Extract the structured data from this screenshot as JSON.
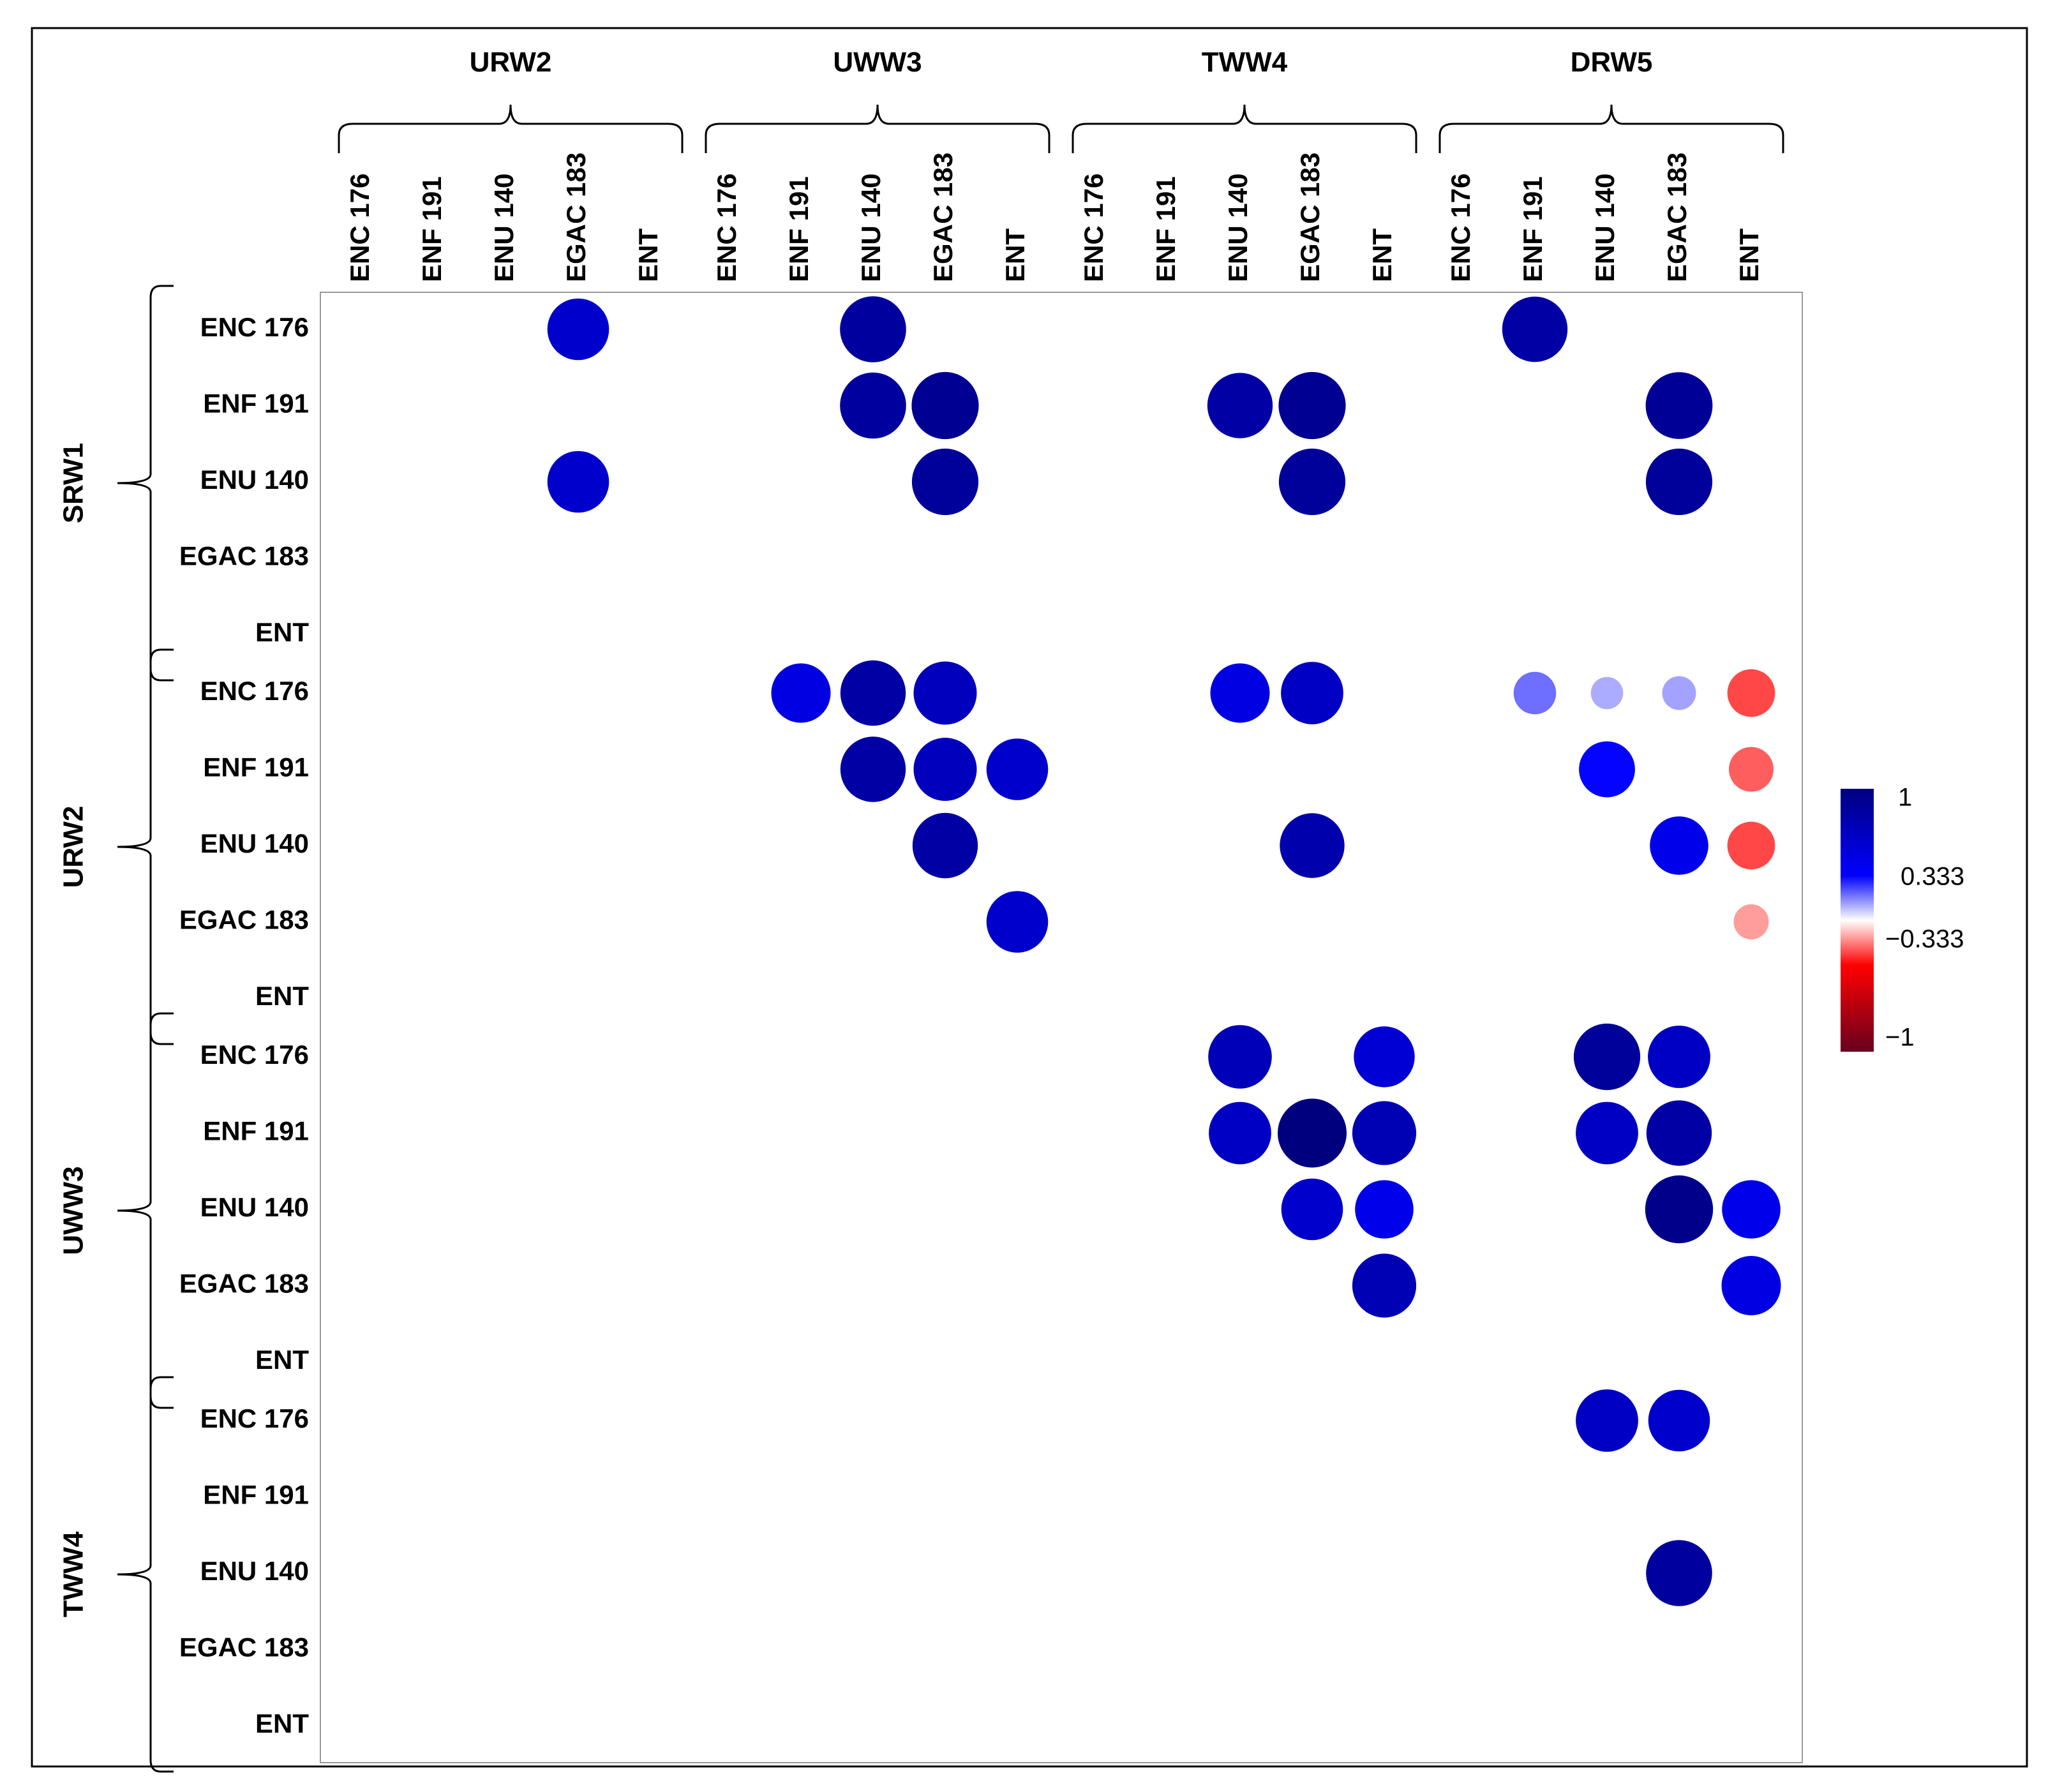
{
  "chart_data": {
    "type": "heatmap",
    "style": "correlation circle matrix",
    "column_groups": [
      "URW2",
      "UWW3",
      "TWW4",
      "DRW5"
    ],
    "row_groups": [
      "SRW1",
      "URW2",
      "UWW3",
      "TWW4"
    ],
    "sub_labels": [
      "ENC 176",
      "ENF 191",
      "ENU 140",
      "EGAC 183",
      "ENT"
    ],
    "color_scale": {
      "range": [
        -1,
        1
      ],
      "ticks": [
        "1",
        "0.333",
        "−0.333",
        "−1"
      ],
      "colors": {
        "neg": "#67001F",
        "neg_mid": "#FF0000",
        "zero": "#FFFFFF",
        "pos_mid": "#0000FF",
        "pos": "#00007F"
      }
    },
    "cells": [
      {
        "row": 0,
        "col": 3,
        "value": 0.8
      },
      {
        "row": 0,
        "col": 7,
        "value": 0.92
      },
      {
        "row": 0,
        "col": 16,
        "value": 0.9
      },
      {
        "row": 1,
        "col": 7,
        "value": 0.92
      },
      {
        "row": 1,
        "col": 8,
        "value": 0.95
      },
      {
        "row": 1,
        "col": 12,
        "value": 0.9
      },
      {
        "row": 1,
        "col": 13,
        "value": 0.95
      },
      {
        "row": 1,
        "col": 18,
        "value": 0.94
      },
      {
        "row": 2,
        "col": 3,
        "value": 0.8
      },
      {
        "row": 2,
        "col": 8,
        "value": 0.93
      },
      {
        "row": 2,
        "col": 13,
        "value": 0.93
      },
      {
        "row": 2,
        "col": 18,
        "value": 0.93
      },
      {
        "row": 5,
        "col": 6,
        "value": 0.74
      },
      {
        "row": 5,
        "col": 7,
        "value": 0.9
      },
      {
        "row": 5,
        "col": 8,
        "value": 0.84
      },
      {
        "row": 5,
        "col": 12,
        "value": 0.74
      },
      {
        "row": 5,
        "col": 13,
        "value": 0.82
      },
      {
        "row": 5,
        "col": 16,
        "value": 0.38
      },
      {
        "row": 5,
        "col": 17,
        "value": 0.22
      },
      {
        "row": 5,
        "col": 18,
        "value": 0.24
      },
      {
        "row": 5,
        "col": 19,
        "value": -0.48
      },
      {
        "row": 6,
        "col": 7,
        "value": 0.9
      },
      {
        "row": 6,
        "col": 8,
        "value": 0.84
      },
      {
        "row": 6,
        "col": 9,
        "value": 0.8
      },
      {
        "row": 6,
        "col": 17,
        "value": 0.66
      },
      {
        "row": 6,
        "col": 19,
        "value": -0.42
      },
      {
        "row": 7,
        "col": 8,
        "value": 0.9
      },
      {
        "row": 7,
        "col": 13,
        "value": 0.88
      },
      {
        "row": 7,
        "col": 18,
        "value": 0.72
      },
      {
        "row": 7,
        "col": 19,
        "value": -0.48
      },
      {
        "row": 8,
        "col": 9,
        "value": 0.8
      },
      {
        "row": 8,
        "col": 19,
        "value": -0.26
      },
      {
        "row": 10,
        "col": 12,
        "value": 0.85
      },
      {
        "row": 10,
        "col": 14,
        "value": 0.78
      },
      {
        "row": 10,
        "col": 17,
        "value": 0.93
      },
      {
        "row": 10,
        "col": 18,
        "value": 0.82
      },
      {
        "row": 11,
        "col": 12,
        "value": 0.82
      },
      {
        "row": 11,
        "col": 13,
        "value": 1.0
      },
      {
        "row": 11,
        "col": 14,
        "value": 0.86
      },
      {
        "row": 11,
        "col": 17,
        "value": 0.82
      },
      {
        "row": 11,
        "col": 18,
        "value": 0.9
      },
      {
        "row": 12,
        "col": 13,
        "value": 0.8
      },
      {
        "row": 12,
        "col": 14,
        "value": 0.72
      },
      {
        "row": 12,
        "col": 18,
        "value": 0.97
      },
      {
        "row": 12,
        "col": 19,
        "value": 0.72
      },
      {
        "row": 13,
        "col": 14,
        "value": 0.86
      },
      {
        "row": 13,
        "col": 19,
        "value": 0.74
      },
      {
        "row": 15,
        "col": 17,
        "value": 0.82
      },
      {
        "row": 15,
        "col": 18,
        "value": 0.8
      },
      {
        "row": 17,
        "col": 18,
        "value": 0.92
      }
    ]
  }
}
